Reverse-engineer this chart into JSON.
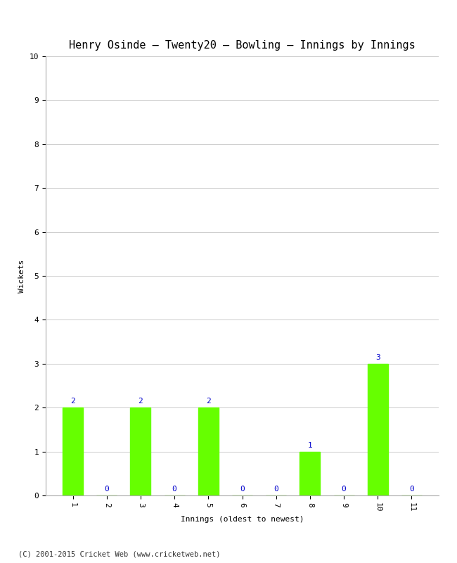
{
  "title": "Henry Osinde – Twenty20 – Bowling – Innings by Innings",
  "innings": [
    1,
    2,
    3,
    4,
    5,
    6,
    7,
    8,
    9,
    10,
    11
  ],
  "wickets": [
    2,
    0,
    2,
    0,
    2,
    0,
    0,
    1,
    0,
    3,
    0
  ],
  "bar_color": "#66ff00",
  "bar_edge_color": "#66ff00",
  "xlabel": "Innings (oldest to newest)",
  "ylabel": "Wickets",
  "ylim": [
    0,
    10
  ],
  "yticks": [
    0,
    1,
    2,
    3,
    4,
    5,
    6,
    7,
    8,
    9,
    10
  ],
  "title_fontsize": 11,
  "label_fontsize": 8,
  "tick_fontsize": 8,
  "annotation_color": "#0000cc",
  "annotation_fontsize": 8,
  "footer_text": "(C) 2001-2015 Cricket Web (www.cricketweb.net)",
  "footer_fontsize": 7.5,
  "background_color": "#ffffff",
  "grid_color": "#cccccc"
}
